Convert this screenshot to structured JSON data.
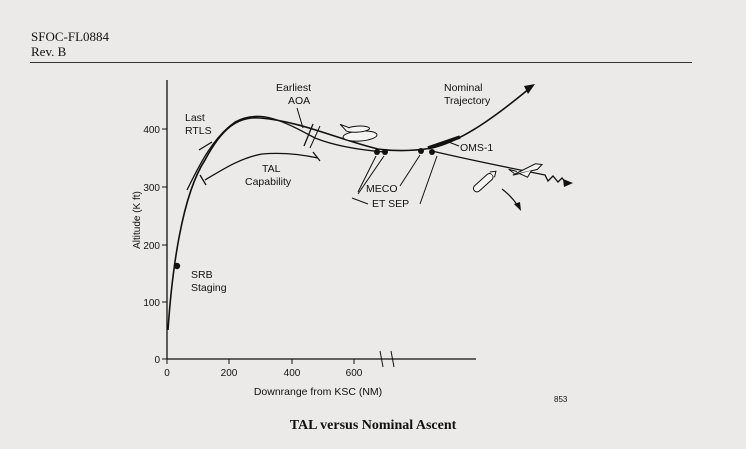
{
  "header": {
    "doc_id": "SFOC-FL0884",
    "revision": "Rev. B"
  },
  "figure": {
    "caption": "TAL versus Nominal Ascent",
    "number": "853"
  },
  "chart_data": {
    "type": "line",
    "xlabel": "Downrange from KSC (NM)",
    "ylabel": "Altitude (K ft)",
    "x_ticks": [
      "0",
      "200",
      "400",
      "600"
    ],
    "y_ticks": [
      "0",
      "100",
      "200",
      "300",
      "400"
    ],
    "xlim": [
      0,
      680
    ],
    "ylim": [
      0,
      450
    ],
    "x_axis_break": true,
    "grid": false,
    "series": [
      {
        "name": "Nominal Trajectory",
        "x": [
          0,
          20,
          40,
          60,
          80,
          110,
          150,
          200,
          250,
          300,
          350,
          400,
          450,
          500,
          550,
          600,
          640,
          680
        ],
        "y": [
          0,
          70,
          160,
          240,
          310,
          360,
          395,
          412,
          410,
          404,
          398,
          390,
          382,
          372,
          364,
          358,
          356,
          355
        ]
      },
      {
        "name": "TAL Capability",
        "x": [
          120,
          160,
          200,
          260,
          320,
          380,
          440,
          500
        ],
        "y": [
          305,
          325,
          340,
          350,
          352,
          350,
          348,
          345
        ]
      }
    ],
    "annotations": [
      {
        "label": "SRB Staging",
        "x": 30,
        "y": 160
      },
      {
        "label": "Last RTLS",
        "x": 130,
        "y": 395
      },
      {
        "label": "Earliest AOA",
        "x": 430,
        "y": 440
      },
      {
        "label": "TAL Capability",
        "x": 300,
        "y": 320
      },
      {
        "label": "Nominal Trajectory"
      },
      {
        "label": "OMS-1"
      },
      {
        "label": "MECO"
      },
      {
        "label": "ET SEP"
      }
    ]
  }
}
